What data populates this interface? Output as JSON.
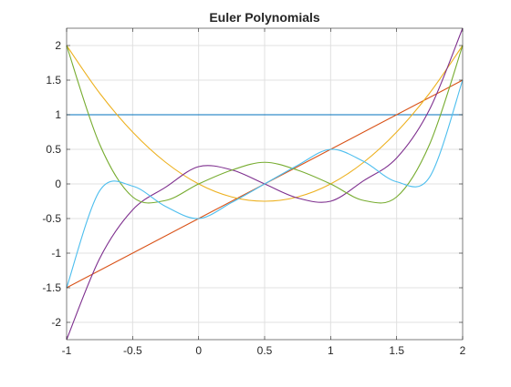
{
  "chart_data": {
    "type": "line",
    "title": "Euler Polynomials",
    "xlabel": "",
    "ylabel": "",
    "xlim": [
      -1,
      2
    ],
    "ylim": [
      -2.25,
      2.25
    ],
    "grid": true,
    "xticks": [
      -1,
      -0.5,
      0,
      0.5,
      1,
      1.5,
      2
    ],
    "xtick_labels": [
      "-1",
      "-0.5",
      "0",
      "0.5",
      "1",
      "1.5",
      "2"
    ],
    "yticks": [
      2,
      1.5,
      1,
      0.5,
      0,
      -0.5,
      -1,
      -1.5,
      -2
    ],
    "ytick_labels": [
      "2",
      "1.5",
      "1",
      "0.5",
      "0",
      "-0.5",
      "-1",
      "-1.5",
      "-2"
    ],
    "x": [
      -1,
      -0.75,
      -0.5,
      -0.25,
      0,
      0.25,
      0.5,
      0.75,
      1,
      1.25,
      1.5,
      1.75,
      2
    ],
    "series": [
      {
        "color": "#0072BD",
        "values": [
          1,
          1,
          1,
          1,
          1,
          1,
          1,
          1,
          1,
          1,
          1,
          1,
          1
        ]
      },
      {
        "color": "#D95319",
        "values": [
          -1.5,
          -1.25,
          -1,
          -0.75,
          -0.5,
          -0.25,
          0,
          0.25,
          0.5,
          0.75,
          1,
          1.25,
          1.5
        ]
      },
      {
        "color": "#EDB120",
        "values": [
          2,
          1.3125,
          0.75,
          0.3125,
          0,
          -0.1875,
          -0.25,
          -0.1875,
          0,
          0.3125,
          0.75,
          1.3125,
          2
        ]
      },
      {
        "color": "#7E2F8E",
        "values": [
          -2.25,
          -1.0781,
          -0.375,
          -0.0469,
          0.25,
          0.2031,
          0,
          -0.2031,
          -0.25,
          0.0469,
          0.375,
          1.0781,
          2.25
        ]
      },
      {
        "color": "#77AC30",
        "values": [
          2,
          0.5742,
          -0.1875,
          -0.2383,
          0,
          0.1992,
          0.3125,
          0.1992,
          0,
          -0.2383,
          -0.1875,
          0.5742,
          2
        ]
      },
      {
        "color": "#4DBEEE",
        "values": [
          -1.5,
          -0.0996,
          -0.0312,
          -0.3252,
          -0.5,
          -0.2686,
          0,
          0.2686,
          0.5,
          0.3252,
          0.0312,
          0.0996,
          1.5
        ]
      }
    ]
  }
}
